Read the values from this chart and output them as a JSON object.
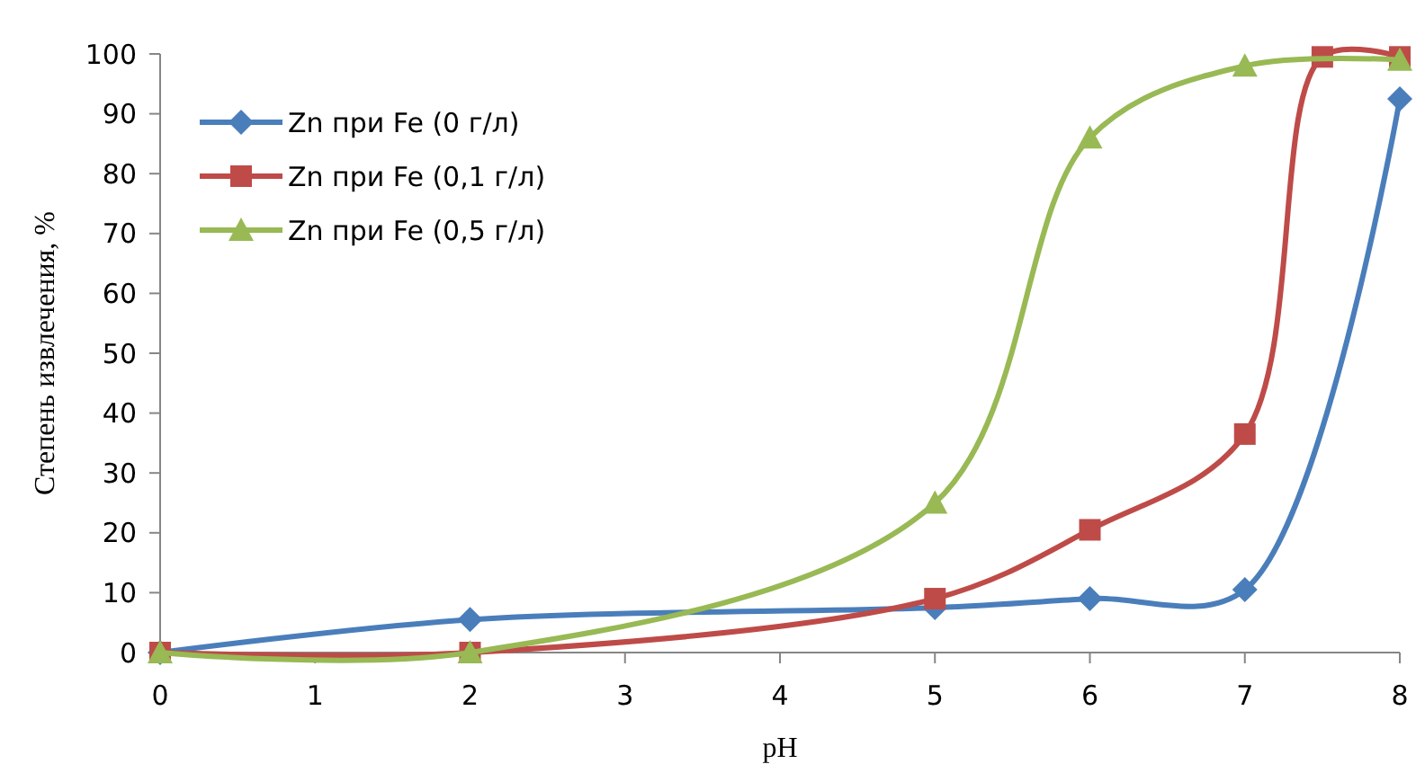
{
  "chart_data": {
    "type": "line",
    "xlabel": "pH",
    "ylabel": "Степень извлечения, %",
    "xlim": [
      0,
      8
    ],
    "xticks": [
      0,
      1,
      2,
      3,
      4,
      5,
      6,
      7,
      8
    ],
    "ylim": [
      0,
      100
    ],
    "yticks": [
      0,
      10,
      20,
      30,
      40,
      50,
      60,
      70,
      80,
      90,
      100
    ],
    "grid": false,
    "legend": "top left",
    "series": [
      {
        "name": "Zn при Fe (0 г/л)",
        "color": "#4a7ebb",
        "marker": "diamond",
        "x": [
          0,
          2,
          5,
          6,
          7,
          8
        ],
        "values": [
          0,
          5.5,
          7.5,
          9,
          10.5,
          92.5
        ]
      },
      {
        "name": "Zn при Fe (0,1 г/л)",
        "color": "#be4b48",
        "marker": "square",
        "x": [
          0,
          2,
          5,
          6,
          7,
          7.5,
          8
        ],
        "values": [
          0,
          0,
          9,
          20.5,
          36.5,
          99.5,
          99.5
        ]
      },
      {
        "name": "Zn при Fe (0,5 г/л)",
        "color": "#98b954",
        "marker": "triangle",
        "x": [
          0,
          2,
          5,
          6,
          7,
          8
        ],
        "values": [
          0,
          0,
          25,
          86,
          98,
          99
        ]
      }
    ]
  }
}
